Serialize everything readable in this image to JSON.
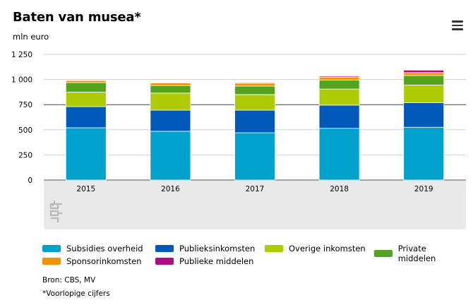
{
  "title": "Baten van musea*",
  "unit_label": "mln euro",
  "menu_icon": "hamburger-menu-icon",
  "logo_icon": "cbs-logo-icon",
  "source": "Bron: CBS, MV",
  "note": "*Voorlopige cijfers",
  "colors": {
    "subsidies": "#00a1cd",
    "publieks": "#0058b8",
    "overige": "#afcb05",
    "private": "#53a31d",
    "sponsor": "#f39200",
    "publieke": "#af0e80",
    "plot_bg": "#e9e9e9",
    "gridline": "#cfcfcf",
    "axis": "#555555"
  },
  "chart_data": {
    "type": "bar",
    "stacked": true,
    "categories": [
      "2015",
      "2016",
      "2017",
      "2018",
      "2019"
    ],
    "ylim": [
      0,
      1250
    ],
    "yticks": [
      0,
      250,
      500,
      750,
      1000,
      1250
    ],
    "ytick_labels": [
      "0",
      "250",
      "500",
      "750",
      "1 000",
      "1 250"
    ],
    "grid": true,
    "legend_position": "bottom",
    "series": [
      {
        "name": "Subsidies overheid",
        "key": "subsidies",
        "values": [
          520,
          485,
          470,
          515,
          525
        ]
      },
      {
        "name": "Publieksinkomsten",
        "key": "publieks",
        "values": [
          210,
          210,
          225,
          230,
          245
        ]
      },
      {
        "name": "Overige inkomsten",
        "key": "overige",
        "values": [
          145,
          170,
          155,
          160,
          175
        ]
      },
      {
        "name": "Private middelen",
        "key": "private",
        "values": [
          95,
          75,
          85,
          90,
          95
        ]
      },
      {
        "name": "Sponsorinkomsten",
        "key": "sponsor",
        "values": [
          20,
          25,
          28,
          28,
          28
        ]
      },
      {
        "name": "Publieke middelen",
        "key": "publieke",
        "values": [
          3,
          5,
          7,
          10,
          25
        ]
      }
    ]
  }
}
